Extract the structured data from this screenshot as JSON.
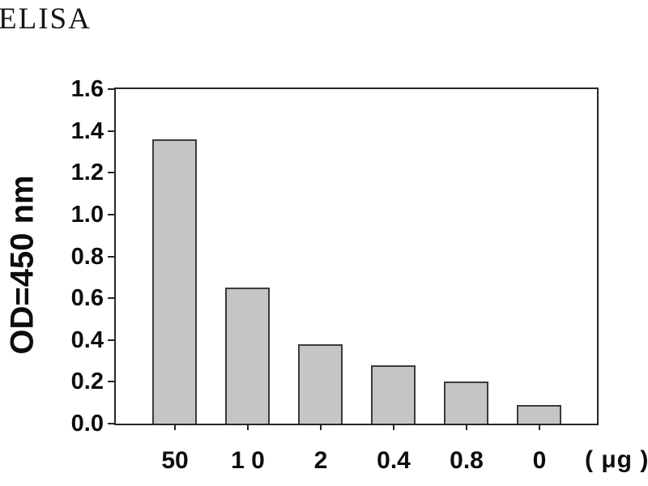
{
  "figure": {
    "title": "ELISA"
  },
  "chart_data": {
    "type": "bar",
    "title": "ELISA",
    "categories": [
      "50",
      "1 0",
      "2",
      "0.4",
      "0.8",
      "0"
    ],
    "values": [
      1.36,
      0.65,
      0.38,
      0.28,
      0.2,
      0.09
    ],
    "x_unit_label": "( μg )",
    "xlabel": "",
    "ylabel": "OD=450 nm",
    "ylim": [
      0.0,
      1.6
    ],
    "ytick_step": 0.2,
    "ytick_labels": [
      "0.0",
      "0.2",
      "0.4",
      "0.6",
      "0.8",
      "1.0",
      "1.2",
      "1.4",
      "1.6"
    ],
    "grid": false,
    "legend": false,
    "colors": {
      "bar_fill": "#c5c5c6",
      "bar_border": "#3b3b3b",
      "axis": "#262626",
      "text": "#0d0d0d",
      "background": "#ffffff"
    }
  }
}
